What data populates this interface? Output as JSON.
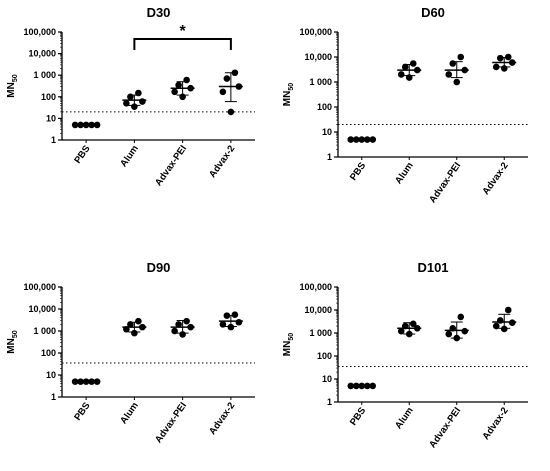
{
  "chart_data": [
    {
      "type": "scatter",
      "title": "D30",
      "ylabel": "MN",
      "ylabel_sub": "50",
      "yscale": "log",
      "ylim": [
        1,
        100000
      ],
      "yticks": [
        "1",
        "10",
        "100",
        "1 000",
        "10,000",
        "100,000"
      ],
      "categories": [
        "PBS",
        "Alum",
        "Advax-PEI",
        "Advax-2"
      ],
      "threshold": 20,
      "points": [
        [
          5,
          5,
          5,
          5,
          5
        ],
        [
          35,
          50,
          60,
          100,
          150
        ],
        [
          100,
          170,
          250,
          350,
          600
        ],
        [
          20,
          170,
          300,
          700,
          1300
        ]
      ],
      "summary": [
        {
          "center": 5,
          "low": null,
          "high": null
        },
        {
          "center": 70,
          "low": 40,
          "high": 120
        },
        {
          "center": 250,
          "low": 120,
          "high": 500
        },
        {
          "center": 300,
          "low": 60,
          "high": 1300
        }
      ],
      "significance": {
        "from": "Alum",
        "to": "Advax-2",
        "label": "*"
      }
    },
    {
      "type": "scatter",
      "title": "D60",
      "ylabel": "MN",
      "ylabel_sub": "50",
      "yscale": "log",
      "ylim": [
        1,
        100000
      ],
      "yticks": [
        "1",
        "10",
        "100",
        "1 000",
        "10,000",
        "100,000"
      ],
      "categories": [
        "PBS",
        "Alum",
        "Advax-PEI",
        "Advax-2"
      ],
      "threshold": 20,
      "points": [
        [
          5,
          5,
          5,
          5,
          5
        ],
        [
          1500,
          2000,
          3000,
          4000,
          5500
        ],
        [
          1000,
          2000,
          3000,
          5500,
          10000
        ],
        [
          3500,
          4000,
          6000,
          9000,
          10000
        ]
      ],
      "summary": [
        {
          "center": 5,
          "low": null,
          "high": null
        },
        {
          "center": 3000,
          "low": 1800,
          "high": 5000
        },
        {
          "center": 3000,
          "low": 1500,
          "high": 6500
        },
        {
          "center": 6000,
          "low": 4000,
          "high": 9500
        }
      ],
      "significance": null
    },
    {
      "type": "scatter",
      "title": "D90",
      "ylabel": "MN",
      "ylabel_sub": "50",
      "yscale": "log",
      "ylim": [
        1,
        100000
      ],
      "yticks": [
        "1",
        "10",
        "100",
        "1 000",
        "10,000",
        "100,000"
      ],
      "categories": [
        "PBS",
        "Alum",
        "Advax-PEI",
        "Advax-2"
      ],
      "threshold": 35,
      "points": [
        [
          5,
          5,
          5,
          5,
          5
        ],
        [
          800,
          1200,
          1500,
          2000,
          2800
        ],
        [
          700,
          1000,
          1500,
          2000,
          2800
        ],
        [
          1500,
          2000,
          2500,
          5000,
          5500
        ]
      ],
      "summary": [
        {
          "center": 1500,
          "low": 900,
          "high": 2500
        },
        {
          "center": 1500,
          "low": 800,
          "high": 3000
        },
        {
          "center": 2800,
          "low": 1600,
          "high": 5000
        }
      ],
      "summary_offset": 1,
      "significance": null
    },
    {
      "type": "scatter",
      "title": "D101",
      "ylabel": "MN",
      "ylabel_sub": "50",
      "yscale": "log",
      "ylim": [
        1,
        100000
      ],
      "yticks": [
        "1",
        "10",
        "100",
        "1 000",
        "10,000",
        "100,000"
      ],
      "categories": [
        "PBS",
        "Alum",
        "Advax-PEI",
        "Advax-2"
      ],
      "threshold": 35,
      "points": [
        [
          5,
          5,
          5,
          5,
          5
        ],
        [
          900,
          1200,
          1600,
          2000,
          2500
        ],
        [
          600,
          900,
          1200,
          1600,
          5000
        ],
        [
          1500,
          2000,
          2800,
          3500,
          10000
        ]
      ],
      "summary": [
        {
          "center": 1600,
          "low": 900,
          "high": 2800
        },
        {
          "center": 1300,
          "low": 600,
          "high": 3000
        },
        {
          "center": 3000,
          "low": 1600,
          "high": 6500
        }
      ],
      "summary_offset": 1,
      "significance": null
    }
  ]
}
